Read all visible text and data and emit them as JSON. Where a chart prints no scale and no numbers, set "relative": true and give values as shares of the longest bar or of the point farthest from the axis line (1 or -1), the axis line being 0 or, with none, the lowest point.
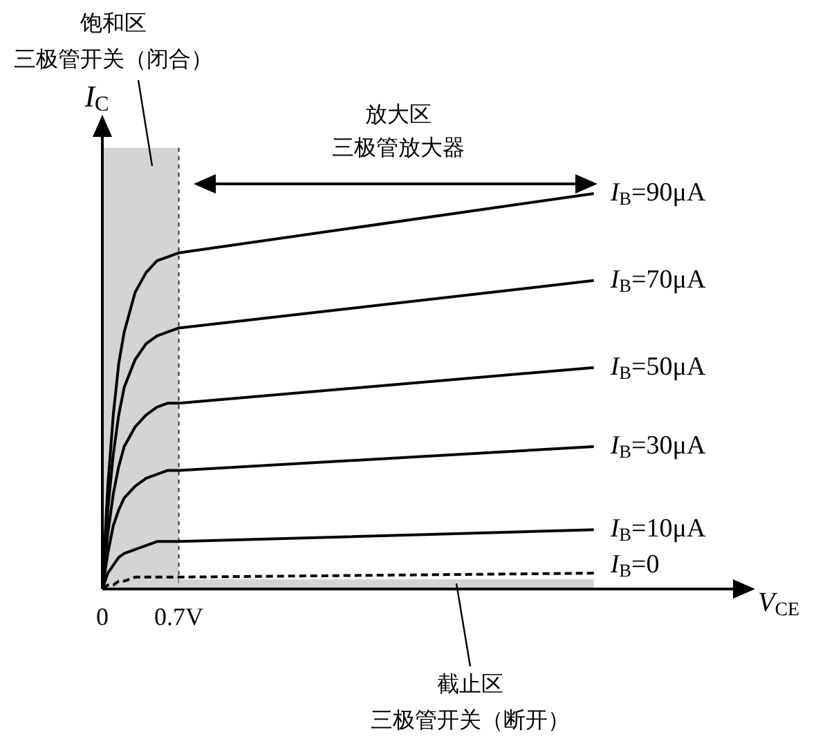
{
  "chart_data": {
    "type": "line",
    "relative": true,
    "xlabel": "V$_{CE}$",
    "ylabel": "I$_{C}$",
    "x": [
      0,
      0.05,
      0.1,
      0.15,
      0.2,
      0.3,
      0.4,
      0.5,
      0.6,
      0.7,
      4.5
    ],
    "xlim": [
      0,
      5.8
    ],
    "xticks": [
      0,
      {
        "value": 0.7,
        "label": "0.7V"
      }
    ],
    "legend": "right",
    "line_style": "solid",
    "series": [
      {
        "name": "I$_{B}$=90μA",
        "color": "#000000",
        "values": [
          0,
          0.26,
          0.44,
          0.57,
          0.65,
          0.75,
          0.8,
          0.83,
          0.84,
          0.85,
          1
        ]
      },
      {
        "name": "I$_{B}$=70μA",
        "color": "#000000",
        "values": [
          0,
          0.2,
          0.34,
          0.44,
          0.51,
          0.58,
          0.62,
          0.64,
          0.65,
          0.66,
          0.78
        ]
      },
      {
        "name": "I$_{B}$=50μA",
        "color": "#000000",
        "values": [
          0,
          0.14,
          0.24,
          0.31,
          0.36,
          0.41,
          0.44,
          0.46,
          0.47,
          0.47,
          0.56
        ]
      },
      {
        "name": "I$_{B}$=30μA",
        "color": "#000000",
        "values": [
          0,
          0.09,
          0.16,
          0.2,
          0.23,
          0.26,
          0.28,
          0.29,
          0.3,
          0.3,
          0.36
        ]
      },
      {
        "name": "I$_{B}$=10μA",
        "color": "#000000",
        "values": [
          0,
          0.04,
          0.06,
          0.08,
          0.09,
          0.1,
          0.11,
          0.12,
          0.12,
          0.12,
          0.15
        ]
      },
      {
        "name": "I$_{B}$=0",
        "color": "#000000",
        "line_style": "dashed",
        "values": [
          0,
          0.01,
          0.01,
          0.02,
          0.02,
          0.03,
          0.03,
          0.03,
          0.03,
          0.03,
          0.04
        ]
      }
    ],
    "bands": [
      {
        "axis": "x",
        "from": 0,
        "to": 0.7,
        "color": "#d4d4d4"
      }
    ],
    "annotations": [
      "饱和区",
      "三极管开关（闭合）",
      "放大区",
      "三极管放大器",
      "截止区",
      "三极管开关（断开）"
    ]
  }
}
